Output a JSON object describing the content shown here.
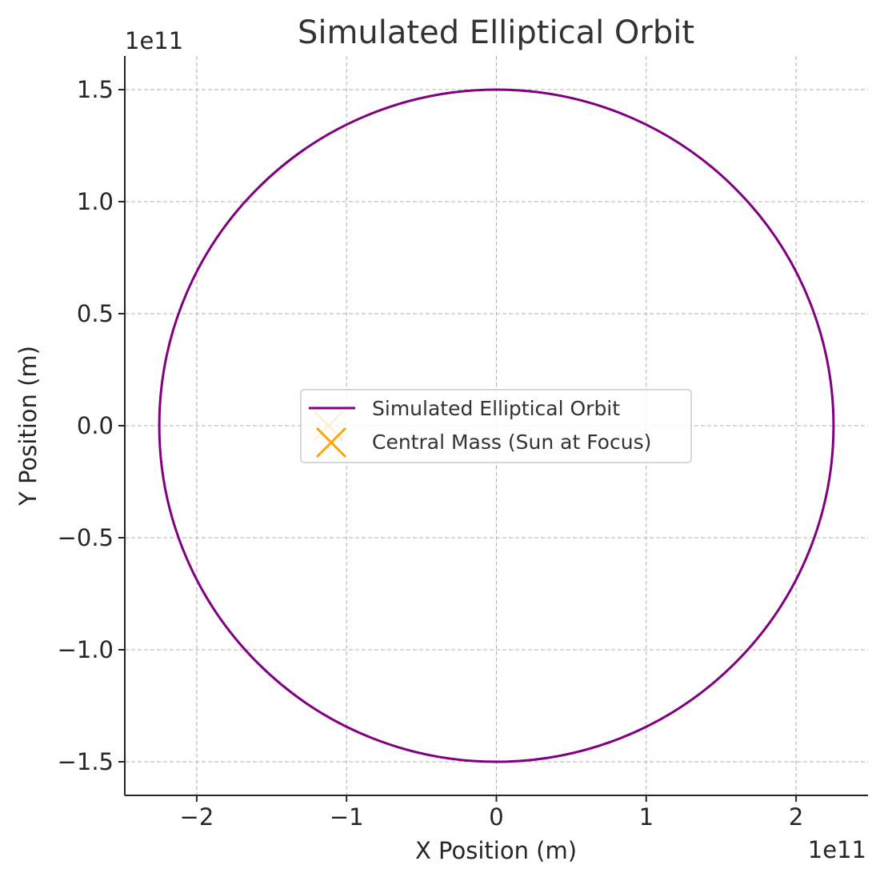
{
  "chart_data": {
    "type": "line",
    "title": "Simulated Elliptical Orbit",
    "xlabel": "X Position (m)",
    "ylabel": "Y Position (m)",
    "x_offset_text": "1e11",
    "y_offset_text": "1e11",
    "xlim": [
      -2.48,
      2.48
    ],
    "ylim": [
      -1.65,
      1.65
    ],
    "x_ticks": [
      -2,
      -1,
      0,
      1,
      2
    ],
    "x_tick_labels": [
      "−2",
      "−1",
      "0",
      "1",
      "2"
    ],
    "y_ticks": [
      -1.5,
      -1.0,
      -0.5,
      0.0,
      0.5,
      1.0,
      1.5
    ],
    "y_tick_labels": [
      "−1.5",
      "−1.0",
      "−0.5",
      "0.0",
      "0.5",
      "1.0",
      "1.5"
    ],
    "grid": true,
    "legend_position": "center",
    "series": [
      {
        "name": "Simulated Elliptical Orbit",
        "kind": "ellipse",
        "center": [
          0,
          0
        ],
        "semi_major_axis": 2.25,
        "semi_minor_axis": 1.5,
        "color": "#800080"
      },
      {
        "name": "Central Mass (Sun at Focus)",
        "kind": "marker",
        "marker": "x",
        "x": -1.12,
        "y": 0.0,
        "color": "#FFA500"
      }
    ]
  }
}
